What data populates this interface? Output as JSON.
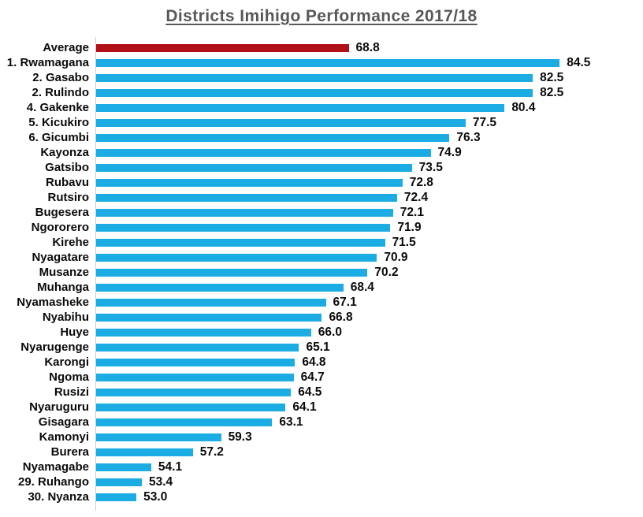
{
  "page": {
    "background": "#FFFFFF"
  },
  "chart_data": {
    "type": "bar",
    "orientation": "horizontal",
    "title": "Districts Imihigo Performance 2017/18",
    "categories": [
      "Average",
      "1. Rwamagana",
      "2. Gasabo",
      "2. Rulindo",
      "4. Gakenke",
      "5. Kicukiro",
      "6. Gicumbi",
      "Kayonza",
      "Gatsibo",
      "Rubavu",
      "Rutsiro",
      "Bugesera",
      "Ngororero",
      "Kirehe",
      "Nyagatare",
      "Musanze",
      "Muhanga",
      "Nyamasheke",
      "Nyabihu",
      "Huye",
      "Nyarugenge",
      "Karongi",
      "Ngoma",
      "Rusizi",
      "Nyaruguru",
      "Gisagara",
      "Kamonyi",
      "Burera",
      "Nyamagabe",
      "29. Ruhango",
      "30. Nyanza"
    ],
    "values": [
      68.8,
      84.5,
      82.5,
      82.5,
      80.4,
      77.5,
      76.3,
      74.9,
      73.5,
      72.8,
      72.4,
      72.1,
      71.9,
      71.5,
      70.9,
      70.2,
      68.4,
      67.1,
      66.8,
      66.0,
      65.1,
      64.8,
      64.7,
      64.5,
      64.1,
      63.1,
      59.3,
      57.2,
      54.1,
      53.4,
      53.0
    ],
    "value_labels": [
      "68.8",
      "84.5",
      "82.5",
      "82.5",
      "80.4",
      "77.5",
      "76.3",
      "74.9",
      "73.5",
      "72.8",
      "72.4",
      "72.1",
      "71.9",
      "71.5",
      "70.9",
      "70.2",
      "68.4",
      "67.1",
      "66.8",
      "66.0",
      "65.1",
      "64.8",
      "64.7",
      "64.5",
      "64.1",
      "63.1",
      "59.3",
      "57.2",
      "54.1",
      "53.4",
      "53.0"
    ],
    "xlim": [
      50,
      90
    ],
    "grid": false,
    "legend": false,
    "highlight_category": "Average",
    "colors": {
      "average_bar": "#B01118",
      "district_bar": "#1AACE3",
      "title_text": "#58585A",
      "label_text": "#0A0A0A",
      "axis_line": "#C9CFD4"
    }
  }
}
